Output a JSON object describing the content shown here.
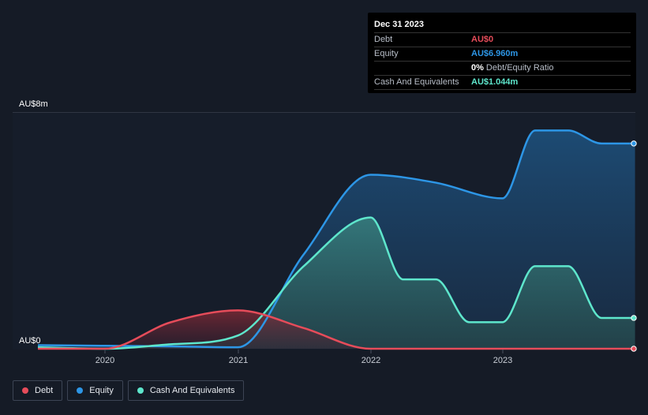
{
  "tooltip": {
    "date": "Dec 31 2023",
    "rows": [
      {
        "label": "Debt",
        "value": "AU$0",
        "color": "#e64c5a"
      },
      {
        "label": "Equity",
        "value": "AU$6.960m",
        "color": "#2d96e6"
      },
      {
        "label": "",
        "value": "0%",
        "unit": "Debt/Equity Ratio",
        "color": "#ffffff"
      },
      {
        "label": "Cash And Equivalents",
        "value": "AU$1.044m",
        "color": "#5ee6cc"
      }
    ]
  },
  "legend": [
    {
      "label": "Debt",
      "color": "#e64c5a"
    },
    {
      "label": "Equity",
      "color": "#2d96e6"
    },
    {
      "label": "Cash And Equivalents",
      "color": "#5ee6cc"
    }
  ],
  "chart_data": {
    "type": "area",
    "y_axis_labels": [
      "AU$8m",
      "AU$0"
    ],
    "ylim": [
      0,
      8
    ],
    "unit": "AU$m",
    "grid": true,
    "x_ticks": [
      "2020",
      "2021",
      "2022",
      "2023"
    ],
    "series": [
      {
        "name": "Debt",
        "color": "#e64c5a",
        "points": [
          {
            "x": "2019-06-30",
            "y": 0
          },
          {
            "x": "2019-12-31",
            "y": 0
          },
          {
            "x": "2020-06-30",
            "y": 0.9
          },
          {
            "x": "2020-12-31",
            "y": 1.3
          },
          {
            "x": "2021-06-30",
            "y": 0.7
          },
          {
            "x": "2021-12-31",
            "y": 0
          },
          {
            "x": "2022-06-30",
            "y": 0
          },
          {
            "x": "2022-12-31",
            "y": 0
          },
          {
            "x": "2023-06-30",
            "y": 0
          },
          {
            "x": "2023-12-31",
            "y": 0
          }
        ]
      },
      {
        "name": "Equity",
        "color": "#2d96e6",
        "points": [
          {
            "x": "2019-06-30",
            "y": 0.12
          },
          {
            "x": "2019-12-31",
            "y": 0.1
          },
          {
            "x": "2020-06-30",
            "y": 0.08
          },
          {
            "x": "2020-12-31",
            "y": 0.05
          },
          {
            "x": "2021-06-30",
            "y": 3.2
          },
          {
            "x": "2021-12-31",
            "y": 5.9
          },
          {
            "x": "2022-06-30",
            "y": 5.63
          },
          {
            "x": "2022-12-31",
            "y": 5.1
          },
          {
            "x": "2023-03-31",
            "y": 7.4
          },
          {
            "x": "2023-06-30",
            "y": 7.4
          },
          {
            "x": "2023-09-30",
            "y": 6.96
          },
          {
            "x": "2023-12-31",
            "y": 6.96
          }
        ]
      },
      {
        "name": "Cash And Equivalents",
        "color": "#5ee6cc",
        "points": [
          {
            "x": "2019-06-30",
            "y": 0.05
          },
          {
            "x": "2019-12-31",
            "y": 0
          },
          {
            "x": "2020-06-30",
            "y": 0.15
          },
          {
            "x": "2020-12-31",
            "y": 0.45
          },
          {
            "x": "2021-06-30",
            "y": 2.8
          },
          {
            "x": "2021-12-31",
            "y": 4.45
          },
          {
            "x": "2022-03-31",
            "y": 2.35
          },
          {
            "x": "2022-06-30",
            "y": 2.35
          },
          {
            "x": "2022-09-30",
            "y": 0.9
          },
          {
            "x": "2022-12-31",
            "y": 0.9
          },
          {
            "x": "2023-03-31",
            "y": 2.8
          },
          {
            "x": "2023-06-30",
            "y": 2.8
          },
          {
            "x": "2023-09-30",
            "y": 1.044
          },
          {
            "x": "2023-12-31",
            "y": 1.044
          }
        ]
      }
    ]
  }
}
